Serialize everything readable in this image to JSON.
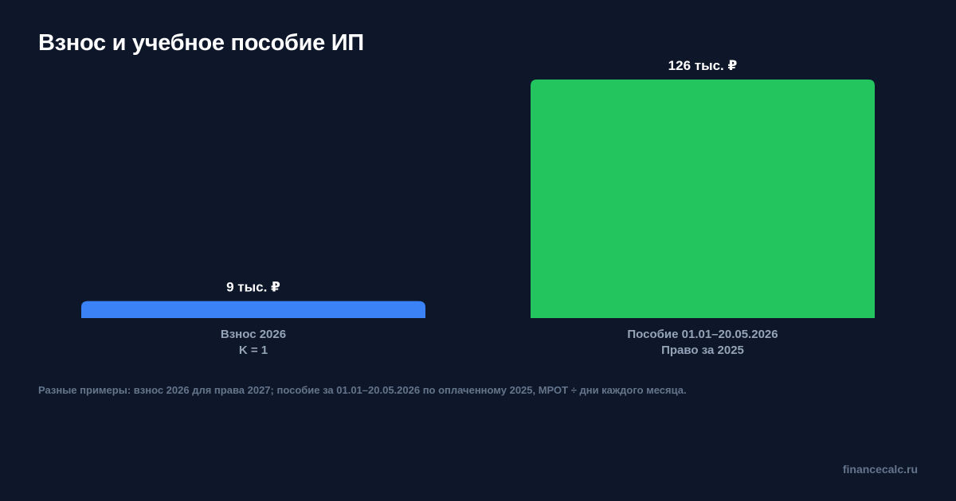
{
  "header": {
    "title": "Взнос и учебное пособие ИП"
  },
  "chart_data": {
    "type": "bar",
    "categories": [
      [
        "Взнос 2026",
        "K = 1"
      ],
      [
        "Пособие 01.01–20.05.2026",
        "Право за 2025"
      ]
    ],
    "values": [
      9,
      126
    ],
    "value_labels": [
      "9 тыс. ₽",
      "126 тыс. ₽"
    ],
    "colors": [
      "#3b82f6",
      "#22c55e"
    ],
    "ylim": [
      0,
      126
    ],
    "grid": false
  },
  "footer": {
    "note": "Разные примеры: взнос 2026 для права 2027; пособие за 01.01–20.05.2026 по оплаченному 2025, МРОТ ÷ дни каждого месяца.",
    "brand": "financecalc.ru"
  }
}
